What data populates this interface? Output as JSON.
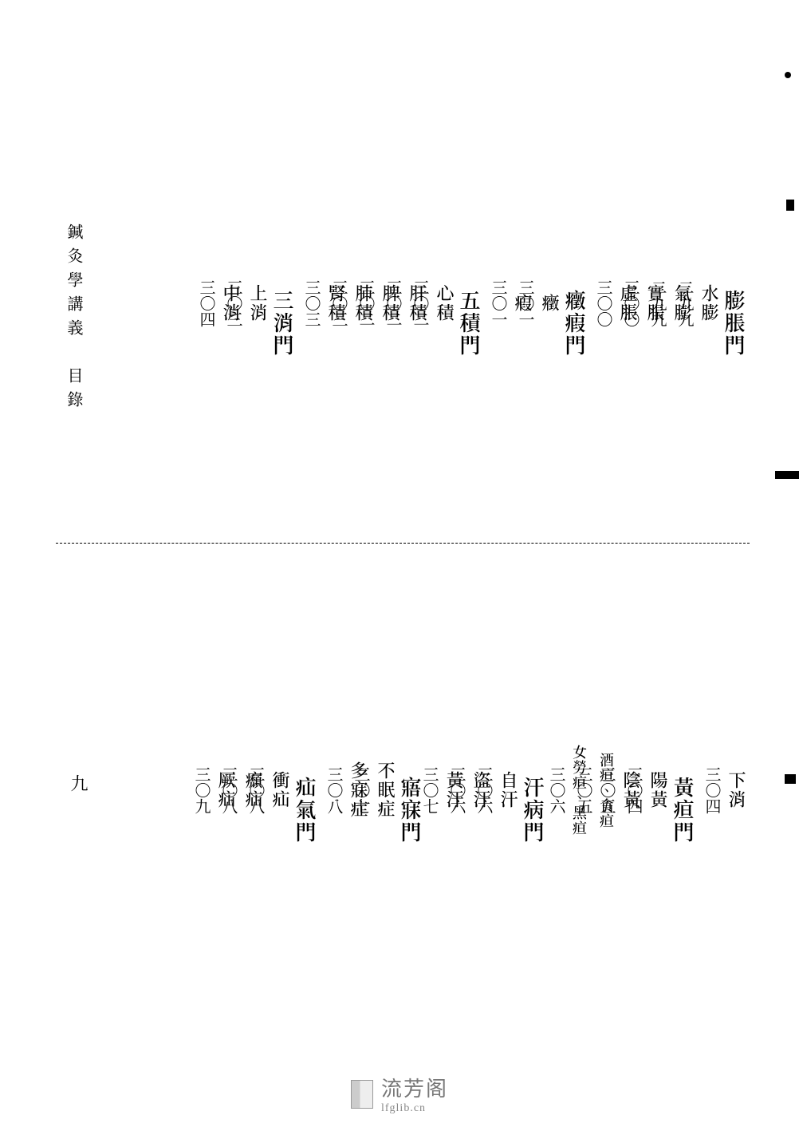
{
  "spine_title": "鍼灸學講義　目錄",
  "spine_page": "九",
  "watermark": {
    "name": "流芳阁",
    "url": "lfglib.cn"
  },
  "colors": {
    "text": "#000000",
    "bg": "#ffffff",
    "watermark": "#888888"
  },
  "fonts": {
    "body_pt": 22,
    "section_pt": 26,
    "page_pt": 20
  },
  "top_row": [
    {
      "type": "section",
      "title": "膨脹門"
    },
    {
      "type": "entry",
      "label": "水膨",
      "page": "二九九"
    },
    {
      "type": "entry",
      "label": "氣膨",
      "page": "二九九"
    },
    {
      "type": "entry",
      "label": "實脹",
      "page": "三〇〇"
    },
    {
      "type": "entry",
      "label": "虛脹",
      "page": "三〇〇"
    },
    {
      "type": "spacer"
    },
    {
      "type": "section",
      "title": "癥瘕門"
    },
    {
      "type": "entry",
      "label": "癥",
      "page": "三〇一"
    },
    {
      "type": "entry",
      "label": "瘕",
      "page": "三〇一"
    },
    {
      "type": "spacer"
    },
    {
      "type": "section",
      "title": "五積門"
    },
    {
      "type": "entry",
      "label": "心積",
      "page": "三〇二"
    },
    {
      "type": "entry",
      "label": "肝積",
      "page": "三〇二"
    },
    {
      "type": "entry",
      "label": "脾積",
      "page": "三〇二"
    },
    {
      "type": "entry",
      "label": "肺積",
      "page": "三〇三"
    },
    {
      "type": "entry",
      "label": "腎積",
      "page": "三〇三"
    },
    {
      "type": "spacer"
    },
    {
      "type": "section",
      "title": "三消門"
    },
    {
      "type": "entry",
      "label": "上消",
      "page": "三〇三"
    },
    {
      "type": "entry",
      "label": "中消",
      "page": "三〇四"
    }
  ],
  "bottom_row": [
    {
      "type": "entry",
      "label": "下消",
      "page": "三〇四"
    },
    {
      "type": "spacer"
    },
    {
      "type": "section",
      "title": "黃疸門"
    },
    {
      "type": "entry",
      "label": "陽黃",
      "page": "三〇四"
    },
    {
      "type": "entry",
      "label": "陰黃",
      "page": "三〇五"
    },
    {
      "type": "entry",
      "label": "酒疸、食疸",
      "page": "三〇五",
      "small": true
    },
    {
      "type": "entry",
      "label": "女勞疸、黑疸",
      "page": "三〇六",
      "small": true
    },
    {
      "type": "spacer-sm"
    },
    {
      "type": "section",
      "title": "汗病門"
    },
    {
      "type": "entry",
      "label": "自汗",
      "page": "三〇六"
    },
    {
      "type": "entry",
      "label": "盜汗",
      "page": "三〇六"
    },
    {
      "type": "entry",
      "label": "黃汗",
      "page": "三〇七"
    },
    {
      "type": "spacer-sm"
    },
    {
      "type": "section",
      "title": "寤寐門"
    },
    {
      "type": "entry",
      "label": "不眠症",
      "page": "三〇七"
    },
    {
      "type": "entry",
      "label": "多寐症",
      "page": "三〇八"
    },
    {
      "type": "spacer"
    },
    {
      "type": "section",
      "title": "疝氣門"
    },
    {
      "type": "entry",
      "label": "衝疝",
      "page": "三〇八"
    },
    {
      "type": "entry",
      "label": "㿗疝",
      "page": "三〇八"
    },
    {
      "type": "entry",
      "label": "厥疝",
      "page": "三〇九"
    }
  ]
}
